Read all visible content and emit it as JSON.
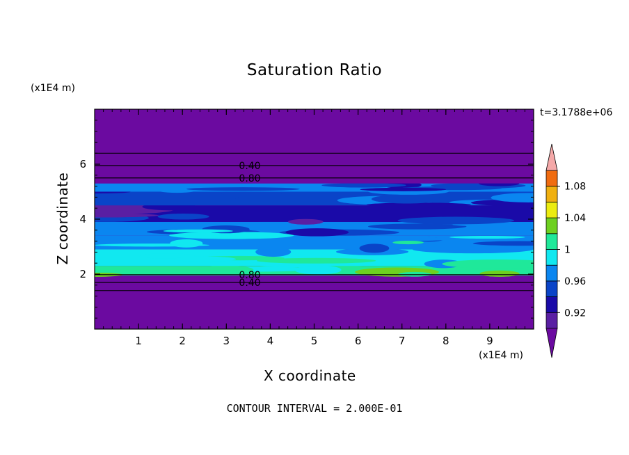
{
  "chart_data": {
    "type": "heatmap",
    "title": "Saturation Ratio",
    "xlabel": "X coordinate",
    "ylabel": "Z coordinate",
    "x_unit": "(x1E4 m)",
    "y_unit": "(x1E4 m)",
    "time_label": "t=3.1788e+06",
    "footer": "CONTOUR INTERVAL = 2.000E-01",
    "xlim": [
      0,
      10
    ],
    "ylim": [
      0,
      8
    ],
    "x_ticks": [
      "1",
      "2",
      "3",
      "4",
      "5",
      "6",
      "7",
      "8",
      "9"
    ],
    "y_ticks": [
      "2",
      "4",
      "6"
    ],
    "colorbar": {
      "levels": [
        0.9,
        0.92,
        0.94,
        0.96,
        0.98,
        1.0,
        1.02,
        1.04,
        1.06,
        1.08,
        1.1
      ],
      "labels": [
        "0.92",
        "0.96",
        "1",
        "1.04",
        "1.08"
      ],
      "colors": [
        "#5a1fa3",
        "#1a0aa8",
        "#0a44c8",
        "#0a86f0",
        "#11e8f0",
        "#1fe89a",
        "#6ed020",
        "#ecec10",
        "#f0b010",
        "#f06c10",
        "#f02020",
        "#f4a8a8"
      ],
      "below_color": "#6b0aa0",
      "above_color": "#f4a8a8"
    },
    "contour_lines": [
      {
        "label": "0.40",
        "z": 5.95
      },
      {
        "label": "0.80",
        "z": 5.5
      },
      {
        "label": "0.80",
        "z": 1.98
      },
      {
        "label": "0.40",
        "z": 1.7
      }
    ],
    "extra_contours_z": [
      6.4,
      1.4
    ],
    "field_bands": [
      {
        "z_from": 0.0,
        "z_to": 1.95,
        "value": 0.85
      },
      {
        "z_from": 1.95,
        "z_to": 2.3,
        "value": 1.01
      },
      {
        "z_from": 2.3,
        "z_to": 2.9,
        "value": 0.99
      },
      {
        "z_from": 2.9,
        "z_to": 3.4,
        "value": 0.975
      },
      {
        "z_from": 3.4,
        "z_to": 3.9,
        "value": 0.965
      },
      {
        "z_from": 3.9,
        "z_to": 4.5,
        "value": 0.93
      },
      {
        "z_from": 4.5,
        "z_to": 5.0,
        "value": 0.945
      },
      {
        "z_from": 5.0,
        "z_to": 5.3,
        "value": 0.96
      },
      {
        "z_from": 5.3,
        "z_to": 8.0,
        "value": 0.85
      }
    ]
  }
}
